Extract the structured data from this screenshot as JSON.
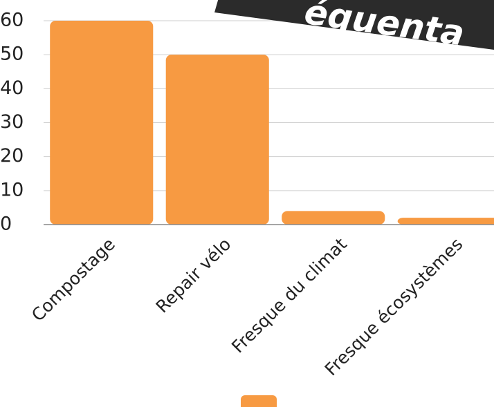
{
  "chart_data": {
    "type": "bar",
    "banner": "équenta",
    "categories": [
      "Compostage",
      "Repair vélo",
      "Fresque du climat",
      "Fresque écosystèmes"
    ],
    "values": [
      60,
      50,
      4,
      2
    ],
    "color": "#f79a42",
    "ylim": [
      0,
      60
    ],
    "yticks": [
      0,
      10,
      20,
      30,
      40,
      50,
      60
    ],
    "grid": true
  }
}
